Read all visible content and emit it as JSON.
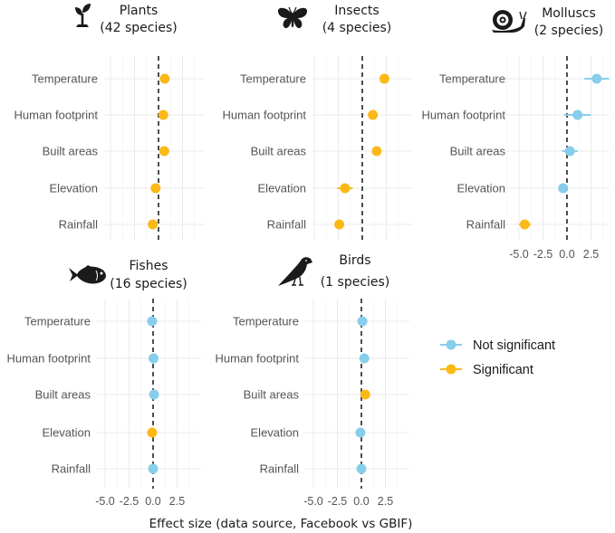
{
  "chart_data": {
    "type": "scatter",
    "subtype": "coefficient-plot",
    "xlabel": "Effect size (data source, Facebook vs GBIF)",
    "xlim": [
      -6.5,
      4.5
    ],
    "x_ticks": [
      -5.0,
      -2.5,
      0.0,
      2.5
    ],
    "x_tick_labels": [
      "-5.0",
      "-2.5",
      "0.0",
      "2.5"
    ],
    "reference_line": 0,
    "grid": true,
    "categories": [
      "Temperature",
      "Human footprint",
      "Built areas",
      "Elevation",
      "Rainfall"
    ],
    "colors": {
      "Not significant": "#87ceeb",
      "Significant": "#fbb918"
    },
    "legend": {
      "position": "right",
      "entries": [
        "Not significant",
        "Significant"
      ]
    },
    "panels": [
      {
        "name": "Plants",
        "title_line1": "Plants",
        "title_line2": "(42 species)",
        "icon": "plant-icon",
        "show_x_ticks": false,
        "values": [
          0.65,
          0.5,
          0.6,
          -0.3,
          -0.6
        ],
        "ci": [
          0.15,
          0.15,
          0.15,
          0.15,
          0.15
        ],
        "significant": [
          true,
          true,
          true,
          true,
          true
        ]
      },
      {
        "name": "Insects",
        "title_line1": "Insects",
        "title_line2": "(4 species)",
        "icon": "butterfly-icon",
        "show_x_ticks": false,
        "values": [
          2.3,
          1.1,
          1.5,
          -1.8,
          -2.4
        ],
        "ci": [
          0.2,
          0.25,
          0.2,
          0.8,
          0.4
        ],
        "significant": [
          true,
          true,
          true,
          true,
          true
        ]
      },
      {
        "name": "Molluscs",
        "title_line1": "Molluscs",
        "title_line2": "(2 species)",
        "icon": "snail-icon",
        "show_x_ticks": true,
        "values": [
          3.1,
          1.1,
          0.3,
          -0.4,
          -4.4
        ],
        "ci": [
          1.3,
          1.4,
          0.8,
          0.3,
          0.6
        ],
        "significant": [
          false,
          false,
          false,
          false,
          true
        ]
      },
      {
        "name": "Fishes",
        "title_line1": "Fishes",
        "title_line2": "(16 species)",
        "icon": "fish-icon",
        "show_x_ticks": true,
        "values": [
          -0.1,
          0.05,
          0.1,
          -0.1,
          0.0
        ],
        "ci": [
          0.1,
          0.1,
          0.1,
          0.1,
          0.1
        ],
        "significant": [
          false,
          false,
          false,
          true,
          false
        ]
      },
      {
        "name": "Birds",
        "title_line1": "Birds",
        "title_line2": "(1 species)",
        "icon": "bird-icon",
        "show_x_ticks": true,
        "values": [
          0.1,
          0.3,
          0.4,
          -0.1,
          0.0
        ],
        "ci": [
          0.1,
          0.1,
          0.1,
          0.1,
          0.1
        ],
        "significant": [
          false,
          false,
          true,
          false,
          false
        ]
      }
    ]
  }
}
